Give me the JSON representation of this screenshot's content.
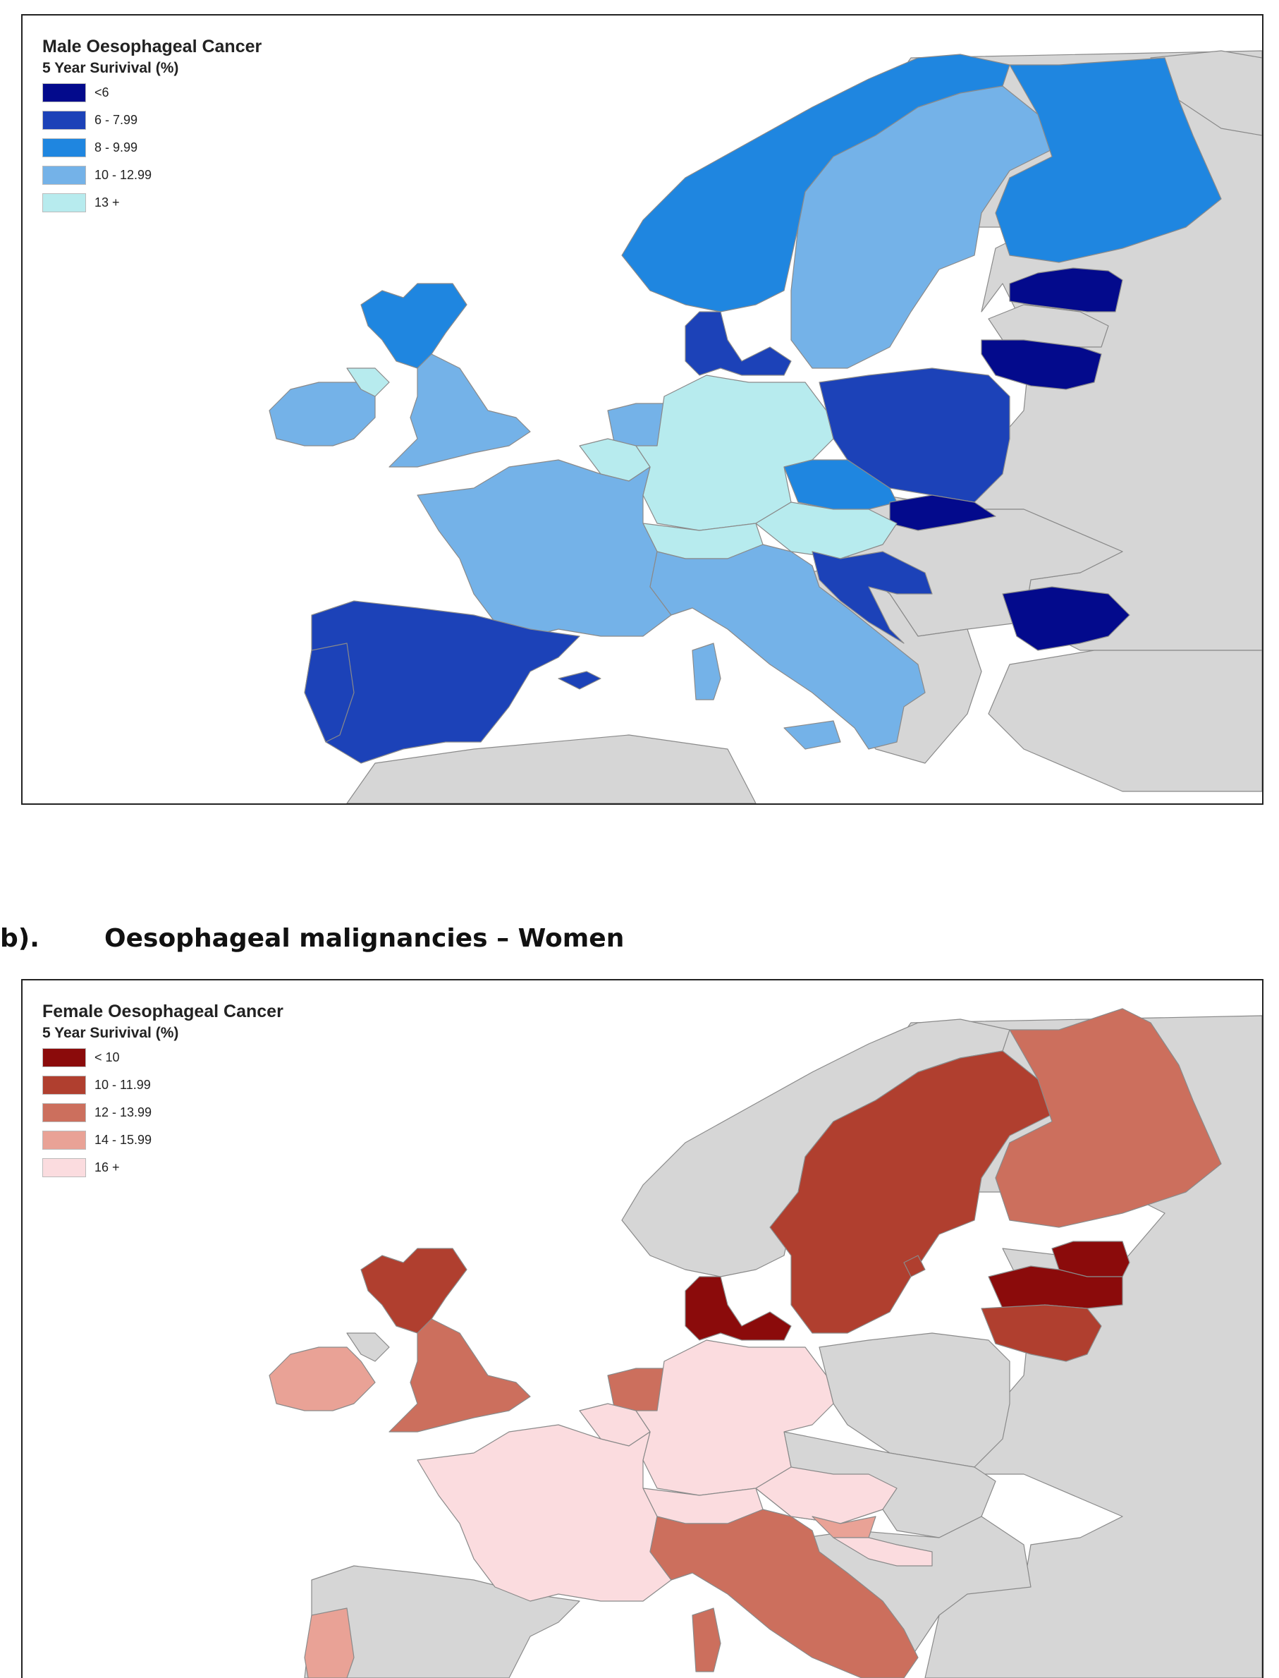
{
  "male_map": {
    "title": "Male Oesophageal Cancer",
    "subtitle": "5 Year Surivival (%)",
    "legend": [
      {
        "label": "<6",
        "color": "#030a8c"
      },
      {
        "label": "6 - 7.99",
        "color": "#1c42b8"
      },
      {
        "label": "8 - 9.99",
        "color": "#1f86e0"
      },
      {
        "label": "10 - 12.99",
        "color": "#74b2e8"
      },
      {
        "label": "13 +",
        "color": "#b7ebee"
      }
    ],
    "countries": {
      "norway": "8 - 9.99",
      "sweden": "10 - 12.99",
      "finland": "8 - 9.99",
      "estonia": "<6",
      "latvia": "no data",
      "lithuania": "<6",
      "denmark": "6 - 7.99",
      "scotland": "8 - 9.99",
      "england": "10 - 12.99",
      "ireland": "10 - 12.99",
      "northern_ireland": "13 +",
      "netherlands": "10 - 12.99",
      "belgium": "13 +",
      "germany": "13 +",
      "poland": "6 - 7.99",
      "czech_republic": "8 - 9.99",
      "slovakia": "<6",
      "austria": "13 +",
      "switzerland": "13 +",
      "france": "10 - 12.99",
      "italy": "10 - 12.99",
      "slovenia_croatia": "6 - 7.99",
      "spain": "6 - 7.99",
      "portugal": "6 - 7.99",
      "bulgaria": "<6"
    }
  },
  "section_b": {
    "number": "b).",
    "title": "Oesophageal malignancies – Women"
  },
  "female_map": {
    "title": "Female Oesophageal Cancer",
    "subtitle": "5 Year Surivival (%)",
    "legend": [
      {
        "label": "< 10",
        "color": "#8b0b0b"
      },
      {
        "label": "10 - 11.99",
        "color": "#b03f2f"
      },
      {
        "label": "12 - 13.99",
        "color": "#cc6f5d"
      },
      {
        "label": "14 - 15.99",
        "color": "#e9a296"
      },
      {
        "label": "16 +",
        "color": "#fbdcdf"
      }
    ],
    "countries": {
      "norway": "no data",
      "sweden": "10 - 11.99",
      "finland": "12 - 13.99",
      "estonia": "< 10",
      "latvia": "< 10",
      "lithuania": "10 - 11.99",
      "denmark": "< 10",
      "scotland": "10 - 11.99",
      "england": "12 - 13.99",
      "ireland": "14 - 15.99",
      "netherlands": "12 - 13.99",
      "belgium": "16 +",
      "germany": "16 +",
      "poland": "no data",
      "austria": "16 +",
      "switzerland": "16 +",
      "france": "16 +",
      "italy": "12 - 13.99",
      "slovenia": "14 - 15.99",
      "croatia": "16 +",
      "portugal": "14 - 15.99"
    }
  },
  "colors": {
    "no_data_land": "#d6d6d6",
    "border": "#7f7f7f",
    "sea": "#ffffff"
  }
}
